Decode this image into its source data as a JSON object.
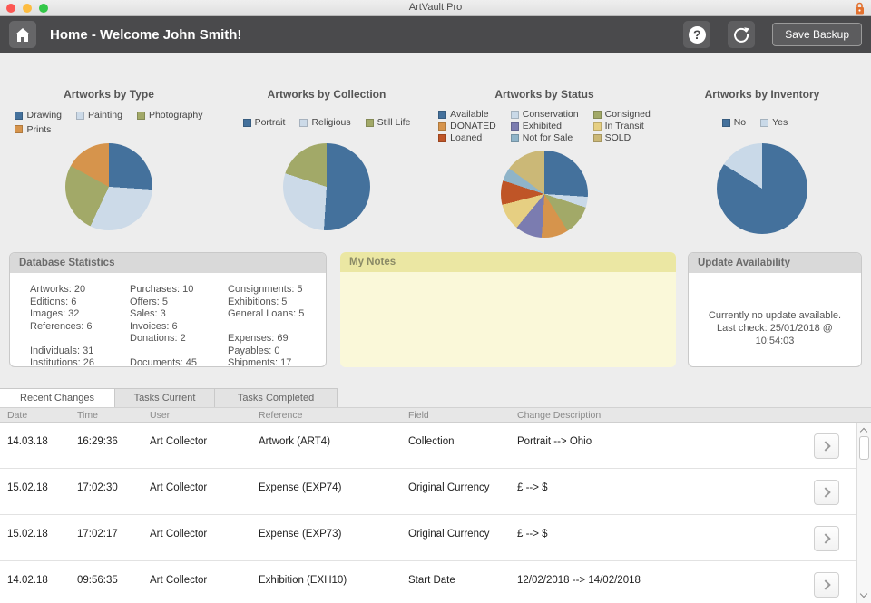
{
  "titlebar": {
    "title": "ArtVault Pro",
    "traffic_light_colors": [
      "#fc5753",
      "#fdbc40",
      "#33c748"
    ],
    "lock_color": "#e2712f"
  },
  "header": {
    "title": "Home - Welcome John Smith!",
    "help_label": "?",
    "save_backup_label": "Save Backup"
  },
  "chart_data": [
    {
      "type": "pie",
      "title": "Artworks by Type",
      "legend_position": "top",
      "slices": [
        {
          "label": "Drawing",
          "value": 26,
          "color": "#44719c"
        },
        {
          "label": "Painting",
          "value": 31,
          "color": "#ccdae8"
        },
        {
          "label": "Photography",
          "value": 26,
          "color": "#a2a968"
        },
        {
          "label": "Prints",
          "value": 17,
          "color": "#d6944c"
        }
      ]
    },
    {
      "type": "pie",
      "title": "Artworks by Collection",
      "legend_position": "top",
      "slices": [
        {
          "label": "Portrait",
          "value": 51,
          "color": "#44719c"
        },
        {
          "label": "Religious",
          "value": 29,
          "color": "#ccdae8"
        },
        {
          "label": "Still Life",
          "value": 20,
          "color": "#a2a968"
        }
      ]
    },
    {
      "type": "pie",
      "title": "Artworks by Status",
      "legend_position": "top",
      "slices": [
        {
          "label": "Available",
          "value": 26,
          "color": "#44719c"
        },
        {
          "label": "Conservation",
          "value": 4,
          "color": "#c9d9e8"
        },
        {
          "label": "Consigned",
          "value": 11,
          "color": "#a2a968"
        },
        {
          "label": "DONATED",
          "value": 10,
          "color": "#d6944c"
        },
        {
          "label": "Exhibited",
          "value": 10,
          "color": "#7b7cb0"
        },
        {
          "label": "In Transit",
          "value": 10,
          "color": "#e6cf82"
        },
        {
          "label": "Loaned",
          "value": 9,
          "color": "#bf5527"
        },
        {
          "label": "Not for Sale",
          "value": 5,
          "color": "#8fb4c9"
        },
        {
          "label": "SOLD",
          "value": 15,
          "color": "#cbb877"
        }
      ]
    },
    {
      "type": "pie",
      "title": "Artworks by Inventory",
      "legend_position": "top",
      "slices": [
        {
          "label": "No",
          "value": 84,
          "color": "#44719c"
        },
        {
          "label": "Yes",
          "value": 16,
          "color": "#c9d9e8"
        }
      ]
    }
  ],
  "panels": {
    "database_statistics": {
      "title": "Database Statistics",
      "columns": [
        [
          "Artworks: 20",
          "Editions: 6",
          "Images: 32",
          "References: 6",
          "",
          "Individuals: 31",
          "Institutions: 26"
        ],
        [
          "Purchases: 10",
          "Offers: 5",
          "Sales: 3",
          "Invoices: 6",
          "Donations: 2",
          "",
          "Documents: 45"
        ],
        [
          "Consignments: 5",
          "Exhibitions: 5",
          "General Loans: 5",
          "",
          "Expenses: 69",
          "Payables: 0",
          "Shipments: 17"
        ]
      ]
    },
    "my_notes": {
      "title": "My Notes",
      "content": ""
    },
    "update_availability": {
      "title": "Update Availability",
      "line1": "Currently no update available.",
      "line2": "Last check: 25/01/2018 @ 10:54:03"
    }
  },
  "tabs": [
    {
      "label": "Recent Changes",
      "active": true
    },
    {
      "label": "Tasks Current",
      "active": false
    },
    {
      "label": "Tasks Completed",
      "active": false
    }
  ],
  "table": {
    "columns": [
      "Date",
      "Time",
      "User",
      "Reference",
      "Field",
      "Change Description"
    ],
    "rows": [
      [
        "14.03.18",
        "16:29:36",
        "Art Collector",
        "Artwork (ART4)",
        "Collection",
        "Portrait  -->  Ohio"
      ],
      [
        "15.02.18",
        "17:02:30",
        "Art Collector",
        "Expense (EXP74)",
        "Original Currency",
        "£  -->  $"
      ],
      [
        "15.02.18",
        "17:02:17",
        "Art Collector",
        "Expense (EXP73)",
        "Original Currency",
        "£  -->  $"
      ],
      [
        "14.02.18",
        "09:56:35",
        "Art Collector",
        "Exhibition (EXH10)",
        "Start Date",
        "12/02/2018  -->  14/02/2018"
      ]
    ]
  }
}
